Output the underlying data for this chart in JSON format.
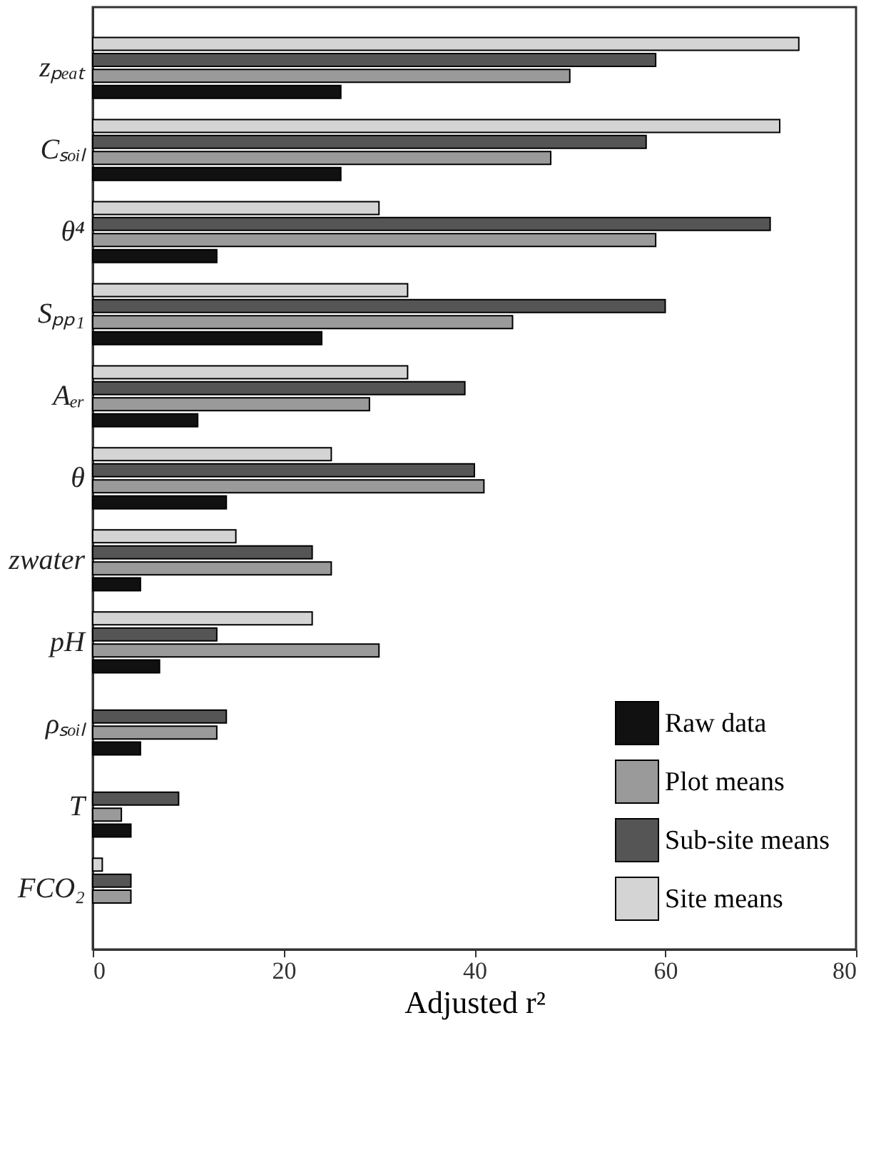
{
  "chart_data": {
    "type": "bar",
    "orientation": "horizontal",
    "xlabel": "Adjusted r²",
    "categories": [
      "zₚₑₐₜ",
      "Cₛₒᵢₗ",
      "θ⁴",
      "Sₚₚ₁",
      "Aₑᵣ",
      "θ",
      "zwater",
      "pH",
      "ρₛₒᵢₗ",
      "T",
      "FCO₂"
    ],
    "series": [
      {
        "name": "Raw data",
        "color": "#111111",
        "values": [
          26,
          26,
          13,
          24,
          11,
          14,
          5,
          7,
          5,
          4,
          null
        ]
      },
      {
        "name": "Plot means",
        "color": "#9a9a9a",
        "values": [
          50,
          48,
          59,
          44,
          29,
          41,
          25,
          30,
          13,
          3,
          4
        ]
      },
      {
        "name": "Sub-site means",
        "color": "#555555",
        "values": [
          59,
          58,
          71,
          60,
          39,
          40,
          23,
          13,
          14,
          9,
          4
        ]
      },
      {
        "name": "Site means",
        "color": "#d4d4d4",
        "values": [
          74,
          72,
          30,
          33,
          33,
          25,
          15,
          23,
          null,
          null,
          1
        ]
      }
    ],
    "xlim": [
      0,
      80
    ],
    "xticks": [
      0,
      20,
      40,
      60,
      80
    ],
    "legend": "bottom right",
    "grid": false
  }
}
